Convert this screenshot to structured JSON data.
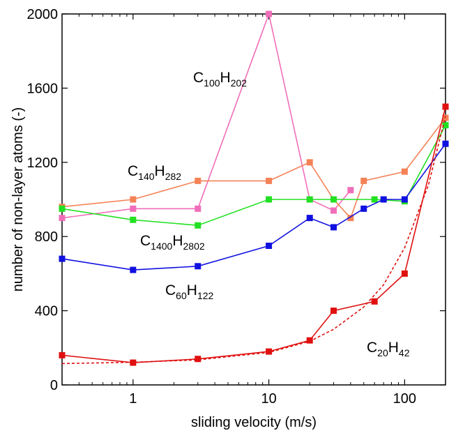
{
  "chart_data": {
    "type": "line",
    "xlabel": "sliding velocity (m/s)",
    "ylabel": "number of non-layer atoms (-)",
    "xscale": "log",
    "xlim": [
      0.3,
      200
    ],
    "ylim": [
      0,
      2000
    ],
    "xticks": [
      1,
      10,
      100
    ],
    "yticks": [
      0,
      400,
      800,
      1200,
      1600,
      2000
    ],
    "grid": false,
    "legend": "none",
    "series": [
      {
        "label_main": [
          "C",
          "H"
        ],
        "label_sub": [
          "100",
          "202"
        ],
        "color": "#f06eb9",
        "x": [
          0.3,
          1,
          3,
          10,
          20,
          30,
          40
        ],
        "y": [
          900,
          950,
          950,
          2000,
          1000,
          940,
          1050
        ]
      },
      {
        "label_main": [
          "C",
          "H"
        ],
        "label_sub": [
          "140",
          "282"
        ],
        "color": "#f48256",
        "x": [
          0.3,
          1,
          3,
          10,
          20,
          30,
          40,
          50,
          100,
          200
        ],
        "y": [
          960,
          1000,
          1100,
          1100,
          1200,
          1000,
          900,
          1100,
          1150,
          1440
        ]
      },
      {
        "label_main": [
          "C",
          "H"
        ],
        "label_sub": [
          "1400",
          "2802"
        ],
        "color": "#22e022",
        "x": [
          0.3,
          1,
          3,
          10,
          20,
          30,
          60,
          100,
          200
        ],
        "y": [
          950,
          890,
          860,
          1000,
          1000,
          1000,
          1000,
          990,
          1400
        ]
      },
      {
        "label_main": [
          "C",
          "H"
        ],
        "label_sub": [
          "60",
          "122"
        ],
        "color": "#1010e0",
        "x": [
          0.3,
          1,
          3,
          10,
          20,
          30,
          50,
          70,
          100,
          200
        ],
        "y": [
          680,
          620,
          640,
          750,
          900,
          850,
          950,
          1000,
          1000,
          1300
        ]
      },
      {
        "label_main": [
          "C",
          "H"
        ],
        "label_sub": [
          "20",
          "42"
        ],
        "color": "#e01010",
        "x": [
          0.3,
          1,
          3,
          10,
          20,
          30,
          60,
          100,
          200
        ],
        "y": [
          160,
          120,
          140,
          180,
          240,
          400,
          450,
          600,
          1500
        ]
      },
      {
        "label_main": [],
        "label_sub": [],
        "color": "#e01010",
        "dashed": true,
        "x": [
          0.3,
          1,
          3,
          10,
          20,
          30,
          50,
          70,
          100,
          150,
          200
        ],
        "y": [
          115,
          122,
          135,
          175,
          235,
          300,
          420,
          540,
          740,
          1080,
          1450
        ]
      }
    ]
  },
  "colors": {
    "c100": "#f06eb9",
    "c140": "#f48256",
    "c1400": "#22e022",
    "c60": "#1010e0",
    "c20": "#e01010",
    "axis": "#000000"
  }
}
